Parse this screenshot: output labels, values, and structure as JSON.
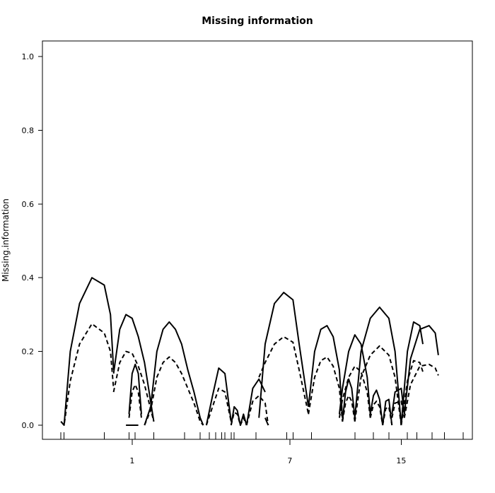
{
  "chart_data": {
    "type": "line",
    "title": "Missing information",
    "xlabel": "",
    "ylabel": "Missing.information",
    "xlim": [
      -6,
      133
    ],
    "ylim": [
      0,
      1.0
    ],
    "grid": false,
    "y_ticks": [
      0.0,
      0.2,
      0.4,
      0.6,
      0.8,
      1.0
    ],
    "y_tick_labels": [
      "0.0",
      "0.2",
      "0.4",
      "0.6",
      "0.8",
      "1.0"
    ],
    "x_ticks": [
      23,
      74,
      110
    ],
    "x_tick_labels": [
      "1",
      "7",
      "15"
    ],
    "marker_positions": [
      0,
      1,
      14,
      22,
      24,
      30,
      40,
      45,
      48,
      50,
      52,
      53,
      55,
      56,
      63,
      73,
      75,
      81,
      95,
      101,
      106,
      112,
      115,
      120,
      124,
      130
    ],
    "series": [
      {
        "style": "solid",
        "color": "#000000",
        "segments": [
          {
            "x": [
              0,
              1,
              3,
              6,
              10,
              14,
              16,
              17
            ],
            "y": [
              0.01,
              0.0,
              0.2,
              0.33,
              0.4,
              0.38,
              0.3,
              0.15
            ]
          },
          {
            "x": [
              17,
              19,
              21,
              23,
              25,
              27,
              30
            ],
            "y": [
              0.14,
              0.26,
              0.3,
              0.29,
              0.24,
              0.17,
              0.01
            ]
          },
          {
            "x": [
              21,
              23,
              25
            ],
            "y": [
              0.0,
              0.0,
              0.0
            ]
          },
          {
            "x": [
              22,
              23,
              24,
              25,
              26
            ],
            "y": [
              0.03,
              0.14,
              0.165,
              0.14,
              0.03
            ]
          },
          {
            "x": [
              27,
              29,
              31,
              33,
              35,
              37,
              39,
              41,
              43,
              45,
              46
            ],
            "y": [
              0.0,
              0.05,
              0.2,
              0.26,
              0.28,
              0.26,
              0.22,
              0.15,
              0.09,
              0.02,
              0.0
            ]
          },
          {
            "x": [
              47,
              49,
              51,
              53,
              55
            ],
            "y": [
              0.0,
              0.08,
              0.155,
              0.14,
              0.01
            ]
          },
          {
            "x": [
              55,
              56,
              57,
              58,
              59,
              60
            ],
            "y": [
              0.0,
              0.05,
              0.04,
              0.0,
              0.03,
              0.0
            ]
          },
          {
            "x": [
              60,
              62,
              64,
              66
            ],
            "y": [
              0.0,
              0.1,
              0.125,
              0.09
            ]
          },
          {
            "x": [
              66,
              67
            ],
            "y": [
              0.02,
              0.0
            ]
          },
          {
            "x": [
              64,
              66,
              69,
              72,
              75,
              77,
              80
            ],
            "y": [
              0.02,
              0.22,
              0.33,
              0.36,
              0.34,
              0.22,
              0.05
            ]
          },
          {
            "x": [
              80,
              82,
              84,
              86,
              88,
              90,
              91
            ],
            "y": [
              0.05,
              0.2,
              0.26,
              0.27,
              0.24,
              0.15,
              0.02
            ]
          },
          {
            "x": [
              91,
              92,
              93,
              94,
              95
            ],
            "y": [
              0.01,
              0.09,
              0.125,
              0.1,
              0.02
            ]
          },
          {
            "x": [
              95,
              97,
              100,
              103,
              106,
              108,
              110
            ],
            "y": [
              0.02,
              0.2,
              0.29,
              0.32,
              0.29,
              0.2,
              0.0
            ]
          },
          {
            "x": [
              110,
              112,
              114,
              116,
              117
            ],
            "y": [
              0.0,
              0.2,
              0.28,
              0.27,
              0.22
            ]
          },
          {
            "x": [
              90,
              91,
              93,
              95,
              97,
              99,
              100
            ],
            "y": [
              0.03,
              0.1,
              0.2,
              0.245,
              0.22,
              0.13,
              0.03
            ]
          },
          {
            "x": [
              100,
              101,
              102,
              103,
              104
            ],
            "y": [
              0.03,
              0.08,
              0.095,
              0.07,
              0.0
            ]
          },
          {
            "x": [
              104,
              105,
              106,
              107
            ],
            "y": [
              0.0,
              0.065,
              0.07,
              0.0
            ]
          },
          {
            "x": [
              107,
              108,
              110,
              111
            ],
            "y": [
              0.03,
              0.09,
              0.1,
              0.03
            ]
          },
          {
            "x": [
              111,
              113,
              116,
              119,
              121,
              122
            ],
            "y": [
              0.03,
              0.18,
              0.26,
              0.27,
              0.25,
              0.19
            ]
          }
        ]
      },
      {
        "style": "dashed",
        "color": "#000000",
        "segments": [
          {
            "x": [
              0,
              1,
              3,
              6,
              10,
              14,
              16,
              17
            ],
            "y": [
              0.01,
              0.0,
              0.12,
              0.22,
              0.275,
              0.25,
              0.2,
              0.1
            ]
          },
          {
            "x": [
              17,
              19,
              21,
              23,
              25,
              27,
              30
            ],
            "y": [
              0.09,
              0.17,
              0.2,
              0.195,
              0.16,
              0.11,
              0.01
            ]
          },
          {
            "x": [
              22,
              23,
              24,
              25,
              26
            ],
            "y": [
              0.02,
              0.09,
              0.11,
              0.09,
              0.02
            ]
          },
          {
            "x": [
              27,
              29,
              31,
              33,
              35,
              37,
              39,
              41,
              43,
              45,
              46
            ],
            "y": [
              0.0,
              0.04,
              0.13,
              0.17,
              0.185,
              0.17,
              0.14,
              0.1,
              0.06,
              0.01,
              0.0
            ]
          },
          {
            "x": [
              47,
              49,
              51,
              53,
              55
            ],
            "y": [
              0.0,
              0.05,
              0.1,
              0.09,
              0.01
            ]
          },
          {
            "x": [
              55,
              56,
              57,
              58,
              59,
              60
            ],
            "y": [
              0.0,
              0.035,
              0.03,
              0.0,
              0.02,
              0.0
            ]
          },
          {
            "x": [
              60,
              62,
              64,
              66,
              67
            ],
            "y": [
              0.0,
              0.065,
              0.08,
              0.06,
              0.0
            ]
          },
          {
            "x": [
              64,
              66,
              69,
              72,
              75,
              77,
              80
            ],
            "y": [
              0.13,
              0.17,
              0.22,
              0.24,
              0.225,
              0.15,
              0.03
            ]
          },
          {
            "x": [
              80,
              82,
              84,
              86,
              88,
              90,
              91
            ],
            "y": [
              0.03,
              0.13,
              0.175,
              0.185,
              0.16,
              0.1,
              0.01
            ]
          },
          {
            "x": [
              91,
              92,
              93,
              94,
              95
            ],
            "y": [
              0.01,
              0.06,
              0.08,
              0.065,
              0.01
            ]
          },
          {
            "x": [
              95,
              97,
              100,
              103,
              106,
              108,
              110
            ],
            "y": [
              0.01,
              0.13,
              0.19,
              0.215,
              0.19,
              0.13,
              0.0
            ]
          },
          {
            "x": [
              110,
              112,
              114,
              116,
              117
            ],
            "y": [
              0.0,
              0.12,
              0.175,
              0.17,
              0.145
            ]
          },
          {
            "x": [
              90,
              91,
              93,
              95,
              97,
              99,
              100
            ],
            "y": [
              0.02,
              0.07,
              0.13,
              0.16,
              0.145,
              0.09,
              0.02
            ]
          },
          {
            "x": [
              100,
              101,
              102,
              103,
              104
            ],
            "y": [
              0.02,
              0.055,
              0.065,
              0.05,
              0.0
            ]
          },
          {
            "x": [
              104,
              105,
              106,
              107
            ],
            "y": [
              0.0,
              0.045,
              0.05,
              0.0
            ]
          },
          {
            "x": [
              107,
              108,
              110,
              111
            ],
            "y": [
              0.02,
              0.06,
              0.065,
              0.02
            ]
          },
          {
            "x": [
              111,
              113,
              116,
              119,
              121,
              122
            ],
            "y": [
              0.02,
              0.11,
              0.16,
              0.165,
              0.155,
              0.135
            ]
          }
        ]
      }
    ]
  }
}
